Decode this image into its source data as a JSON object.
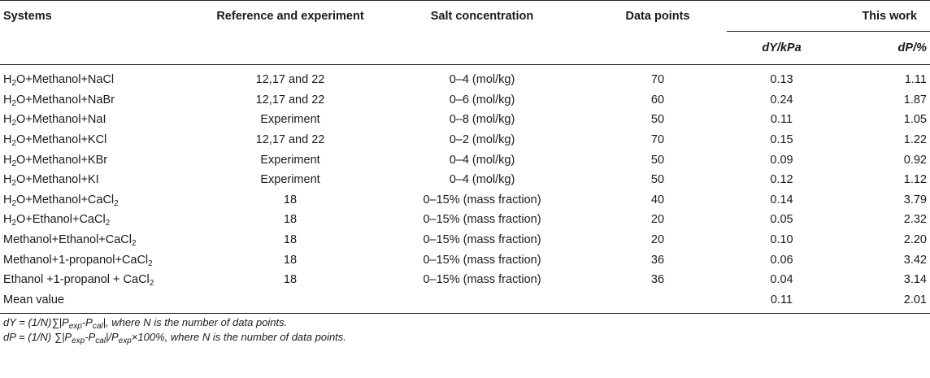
{
  "table": {
    "headers": {
      "systems": "Systems",
      "reference": "Reference and experiment",
      "salt": "Salt concentration",
      "points": "Data points",
      "this_work": "This work",
      "dy": "dY/kPa",
      "dp": "dP/%"
    },
    "rows": [
      {
        "system_pre": "H",
        "system_sub": "2",
        "system_post": "O+Methanol+NaCl",
        "reference": "12,17 and 22",
        "salt": "0–4 (mol/kg)",
        "points": "70",
        "dy": "0.13",
        "dp": "1.11"
      },
      {
        "system_pre": "H",
        "system_sub": "2",
        "system_post": "O+Methanol+NaBr",
        "reference": "12,17 and 22",
        "salt": "0–6 (mol/kg)",
        "points": "60",
        "dy": "0.24",
        "dp": "1.87"
      },
      {
        "system_pre": "H",
        "system_sub": "2",
        "system_post": "O+Methanol+NaI",
        "reference": "Experiment",
        "salt": "0–8 (mol/kg)",
        "points": "50",
        "dy": "0.11",
        "dp": "1.05"
      },
      {
        "system_pre": "H",
        "system_sub": "2",
        "system_post": "O+Methanol+KCl",
        "reference": "12,17 and 22",
        "salt": "0–2 (mol/kg)",
        "points": "70",
        "dy": "0.15",
        "dp": "1.22"
      },
      {
        "system_pre": "H",
        "system_sub": "2",
        "system_post": "O+Methanol+KBr",
        "reference": "Experiment",
        "salt": "0–4 (mol/kg)",
        "points": "50",
        "dy": "0.09",
        "dp": "0.92"
      },
      {
        "system_pre": "H",
        "system_sub": "2",
        "system_post": "O+Methanol+KI",
        "reference": "Experiment",
        "salt": "0–4 (mol/kg)",
        "points": "50",
        "dy": "0.12",
        "dp": "1.12"
      },
      {
        "system_pre": "H",
        "system_sub": "2",
        "system_post": "O+Methanol+CaCl",
        "system_sub2": "2",
        "reference": "18",
        "salt": "0–15% (mass fraction)",
        "points": "40",
        "dy": "0.14",
        "dp": "3.79"
      },
      {
        "system_pre": "H",
        "system_sub": "2",
        "system_post": "O+Ethanol+CaCl",
        "system_sub2": "2",
        "reference": "18",
        "salt": "0–15% (mass fraction)",
        "points": "20",
        "dy": "0.05",
        "dp": "2.32"
      },
      {
        "system_pre": "Methanol+Ethanol+CaCl",
        "system_sub": "2",
        "system_post": "",
        "reference": "18",
        "salt": "0–15% (mass fraction)",
        "points": "20",
        "dy": "0.10",
        "dp": "2.20"
      },
      {
        "system_pre": "Methanol+1-propanol+CaCl",
        "system_sub": "2",
        "system_post": "",
        "reference": "18",
        "salt": "0–15% (mass fraction)",
        "points": "36",
        "dy": "0.06",
        "dp": "3.42"
      },
      {
        "system_pre": "Ethanol +1-propanol + CaCl",
        "system_sub": "2",
        "system_post": "",
        "reference": "18",
        "salt": "0–15% (mass fraction)",
        "points": "36",
        "dy": "0.04",
        "dp": "3.14"
      },
      {
        "system_pre": "Mean value",
        "system_sub": "",
        "system_post": "",
        "reference": "",
        "salt": "",
        "points": "",
        "dy": "0.11",
        "dp": "2.01"
      }
    ]
  },
  "notes": {
    "dy": {
      "a": "dY = (1/N)∑|P",
      "s1": "exp",
      "b": "-P",
      "s2": "cal",
      "c": "|, where N is the number of data points."
    },
    "dp": {
      "a": "dP = (1/N) ∑|P",
      "s1": "exp",
      "b": "-P",
      "s2": "cal",
      "c": "|/P",
      "s3": "exp",
      "d": "×100%, where N is the number of data points."
    }
  }
}
